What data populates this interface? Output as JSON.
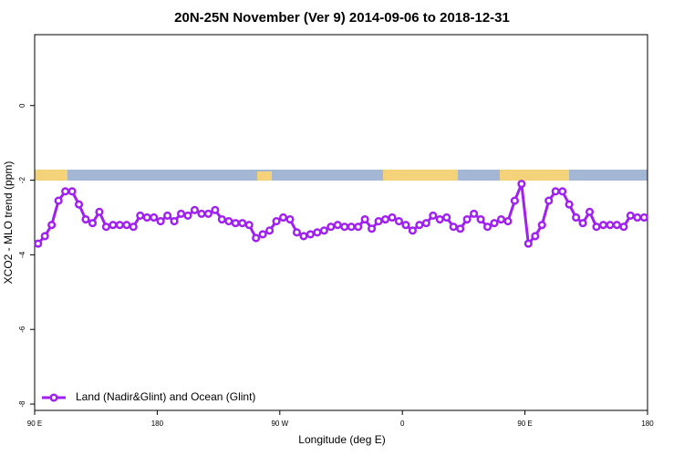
{
  "chart_data": {
    "type": "line",
    "title": "20N-25N November (Ver 9)   2014-09-06 to 2018-12-31",
    "xlabel": "Longitude (deg E)",
    "ylabel": "XCO2 - MLO trend (ppm)",
    "x": [
      92.5,
      97.5,
      102.5,
      107.5,
      112.5,
      117.5,
      122.5,
      127.5,
      132.5,
      137.5,
      142.5,
      147.5,
      152.5,
      157.5,
      162.5,
      167.5,
      172.5,
      177.5,
      182.5,
      187.5,
      192.5,
      197.5,
      202.5,
      207.5,
      212.5,
      217.5,
      222.5,
      227.5,
      232.5,
      237.5,
      242.5,
      247.5,
      252.5,
      257.5,
      262.5,
      267.5,
      272.5,
      277.5,
      282.5,
      287.5,
      292.5,
      297.5,
      302.5,
      307.5,
      312.5,
      317.5,
      322.5,
      327.5,
      332.5,
      337.5,
      342.5,
      347.5,
      352.5,
      357.5,
      362.5,
      367.5,
      372.5,
      377.5,
      382.5,
      387.5,
      392.5,
      397.5,
      402.5,
      407.5,
      412.5,
      417.5,
      422.5,
      427.5,
      432.5,
      437.5,
      442.5,
      447.5,
      452.5,
      457.5,
      462.5,
      467.5,
      472.5,
      477.5,
      482.5,
      487.5,
      492.5,
      497.5,
      502.5,
      507.5,
      512.5,
      517.5,
      522.5,
      527.5,
      532.5,
      537.5
    ],
    "series": [
      {
        "name": "Land (Nadir&Glint) and Ocean (Glint)",
        "color": "#a020f0",
        "values": [
          -3.7,
          -3.5,
          -3.2,
          -2.55,
          -2.3,
          -2.3,
          -2.65,
          -3.05,
          -3.15,
          -2.85,
          -3.25,
          -3.2,
          -3.2,
          -3.2,
          -3.25,
          -2.95,
          -3.0,
          -3.0,
          -3.1,
          -2.95,
          -3.1,
          -2.9,
          -2.95,
          -2.8,
          -2.9,
          -2.9,
          -2.8,
          -3.05,
          -3.1,
          -3.15,
          -3.15,
          -3.2,
          -3.55,
          -3.45,
          -3.35,
          -3.1,
          -3.0,
          -3.05,
          -3.4,
          -3.5,
          -3.45,
          -3.4,
          -3.35,
          -3.25,
          -3.2,
          -3.25,
          -3.25,
          -3.25,
          -3.05,
          -3.3,
          -3.1,
          -3.05,
          -3.0,
          -3.1,
          -3.2,
          -3.35,
          -3.2,
          -3.15,
          -2.95,
          -3.05,
          -3.0,
          -3.25,
          -3.3,
          -3.05,
          -2.9,
          -3.05,
          -3.25,
          -3.15,
          -3.05,
          -3.1,
          -2.55,
          -2.1,
          -3.7,
          -3.5,
          -3.2,
          -2.55,
          -2.3,
          -2.3,
          -2.65,
          -3.0,
          -3.15,
          -2.85,
          -3.25,
          -3.2,
          -3.2,
          -3.2,
          -3.25,
          -2.95,
          -3.0,
          -3.0
        ]
      }
    ],
    "xlim": [
      90,
      540
    ],
    "xticks": [
      {
        "value": 90,
        "label": "90 E"
      },
      180,
      {
        "value": 270,
        "label": "90 W"
      },
      {
        "value": 360,
        "label": "0"
      },
      {
        "value": 450,
        "label": "90 E"
      },
      {
        "value": 540,
        "label": "180"
      }
    ],
    "ylim": [
      -8.17,
      1.9
    ],
    "yticks": [
      0,
      -2,
      -4,
      -6,
      -8
    ],
    "legend": "bottom-left"
  }
}
